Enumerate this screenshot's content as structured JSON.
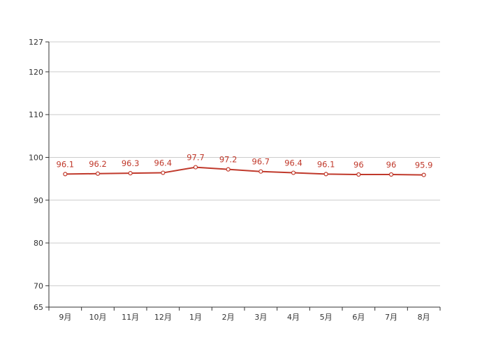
{
  "chart_data": {
    "type": "line",
    "title": "",
    "xlabel": "",
    "ylabel": "",
    "categories": [
      "9月",
      "10月",
      "11月",
      "12月",
      "1月",
      "2月",
      "3月",
      "4月",
      "5月",
      "6月",
      "7月",
      "8月"
    ],
    "series": [
      {
        "values": [
          96.1,
          96.2,
          96.3,
          96.4,
          97.7,
          97.2,
          96.7,
          96.4,
          96.1,
          96,
          96,
          95.9
        ],
        "labels": [
          "96.1",
          "96.2",
          "96.3",
          "96.4",
          "97.7",
          "97.2",
          "96.7",
          "96.4",
          "96.1",
          "96",
          "96",
          "95.9"
        ],
        "color": "#c0392b"
      }
    ],
    "ylim": [
      65,
      127
    ],
    "yticks": [
      65,
      70,
      80,
      90,
      100,
      110,
      120,
      127
    ],
    "ytick_labels": [
      "65",
      "70",
      "80",
      "90",
      "100",
      "110",
      "120",
      "127"
    ],
    "grid": true,
    "legend": "none"
  }
}
